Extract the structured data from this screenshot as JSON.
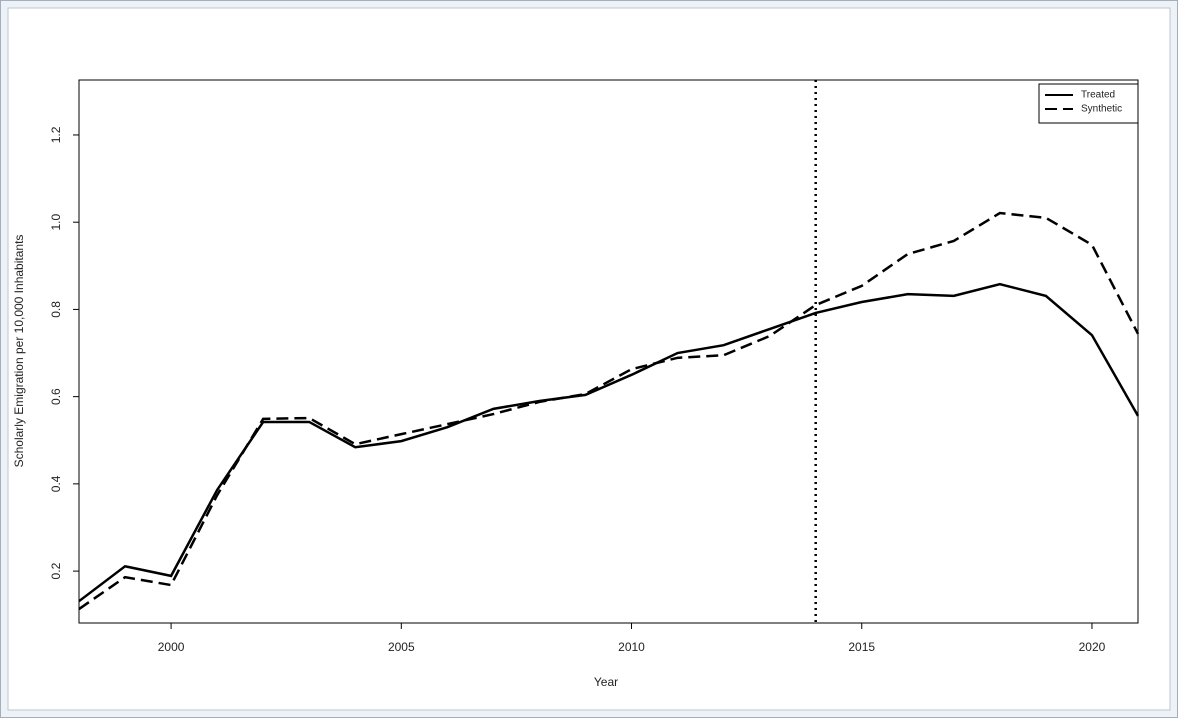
{
  "chart_data": {
    "type": "line",
    "x_label": "Year",
    "y_label": "Scholarly Emigration per 10,000 Inhabitants",
    "x": [
      1998,
      1999,
      2000,
      2001,
      2002,
      2003,
      2004,
      2005,
      2006,
      2007,
      2008,
      2009,
      2010,
      2011,
      2012,
      2013,
      2014,
      2015,
      2016,
      2017,
      2018,
      2019,
      2020,
      2021
    ],
    "series": [
      {
        "name": "Treated",
        "color": "#000000",
        "linestyle": "solid",
        "values": [
          0.131,
          0.211,
          0.189,
          0.386,
          0.542,
          0.542,
          0.484,
          0.498,
          0.53,
          0.572,
          0.59,
          0.604,
          0.65,
          0.7,
          0.718,
          0.755,
          0.792,
          0.817,
          0.835,
          0.831,
          0.858,
          0.831,
          0.741,
          0.556
        ]
      },
      {
        "name": "Synthetic",
        "color": "#000000",
        "linestyle": "dashed",
        "values": [
          0.113,
          0.186,
          0.168,
          0.374,
          0.549,
          0.551,
          0.491,
          0.514,
          0.537,
          0.56,
          0.588,
          0.606,
          0.663,
          0.689,
          0.695,
          0.739,
          0.81,
          0.854,
          0.927,
          0.957,
          1.021,
          1.01,
          0.948,
          0.744
        ]
      }
    ],
    "vline": 2014,
    "xlim": [
      1998,
      2021
    ],
    "xticks": [
      2000,
      2005,
      2010,
      2015,
      2020
    ],
    "ylim": [
      0.081,
      1.326
    ],
    "yticks": [
      0.2,
      0.4,
      0.6,
      0.8,
      {
        "value": 1,
        "label": "1.0"
      },
      1.2
    ],
    "legend": "top-right",
    "grid": false
  }
}
